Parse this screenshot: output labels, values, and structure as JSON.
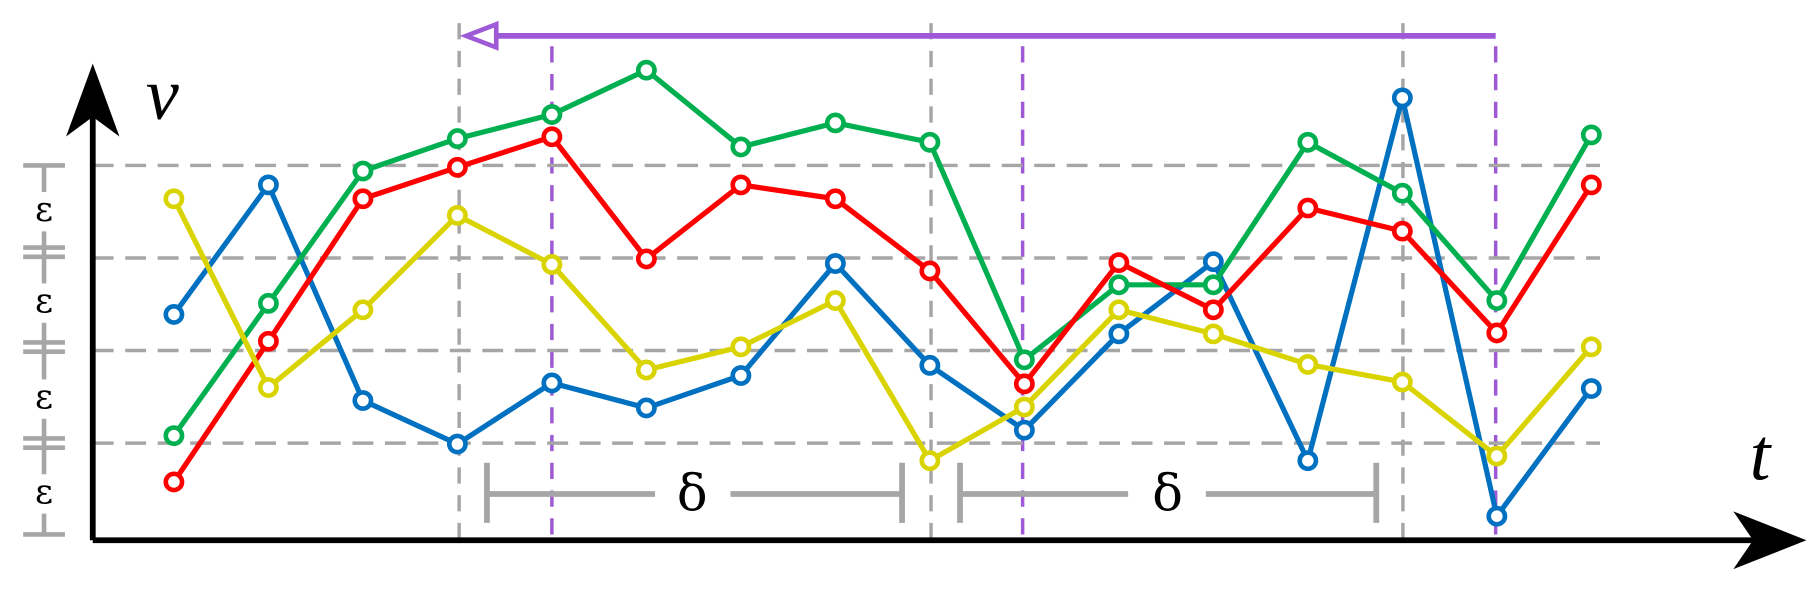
{
  "chart_data": {
    "type": "line",
    "x_label": "t",
    "y_label": "v",
    "categories": [
      null,
      null,
      null,
      null,
      null,
      null,
      null,
      null,
      null,
      null,
      null,
      null,
      null,
      null,
      null,
      null
    ],
    "ylim": [
      0,
      5.25
    ],
    "yticks": [
      1,
      2,
      3,
      4
    ],
    "grid": true,
    "annotations": {
      "epsilon": [
        "ε",
        "ε",
        "ε",
        "ε"
      ],
      "delta": [
        "δ",
        "δ"
      ]
    },
    "series": [
      {
        "name": null,
        "color": "#0070c0",
        "values": [
          2.39,
          3.79,
          1.46,
          0.99,
          1.65,
          1.38,
          1.73,
          2.94,
          1.84,
          1.14,
          2.18,
          2.96,
          0.81,
          4.73,
          0.21,
          1.59
        ]
      },
      {
        "name": null,
        "color": "#00b050",
        "values": [
          1.08,
          2.51,
          3.94,
          4.29,
          4.55,
          5.03,
          4.2,
          4.46,
          4.25,
          1.9,
          2.71,
          2.71,
          4.25,
          3.7,
          2.54,
          4.33
        ]
      },
      {
        "name": null,
        "color": "#ff0000",
        "values": [
          0.58,
          2.1,
          3.64,
          3.98,
          4.31,
          2.99,
          3.79,
          3.64,
          2.86,
          1.64,
          2.95,
          2.44,
          3.54,
          3.29,
          2.19,
          3.79
        ]
      },
      {
        "name": null,
        "color": "#d9d400",
        "values": [
          3.64,
          1.6,
          2.44,
          3.46,
          2.93,
          1.79,
          2.04,
          2.54,
          0.81,
          1.39,
          2.44,
          2.18,
          1.85,
          1.66,
          0.86,
          2.04
        ]
      }
    ]
  }
}
